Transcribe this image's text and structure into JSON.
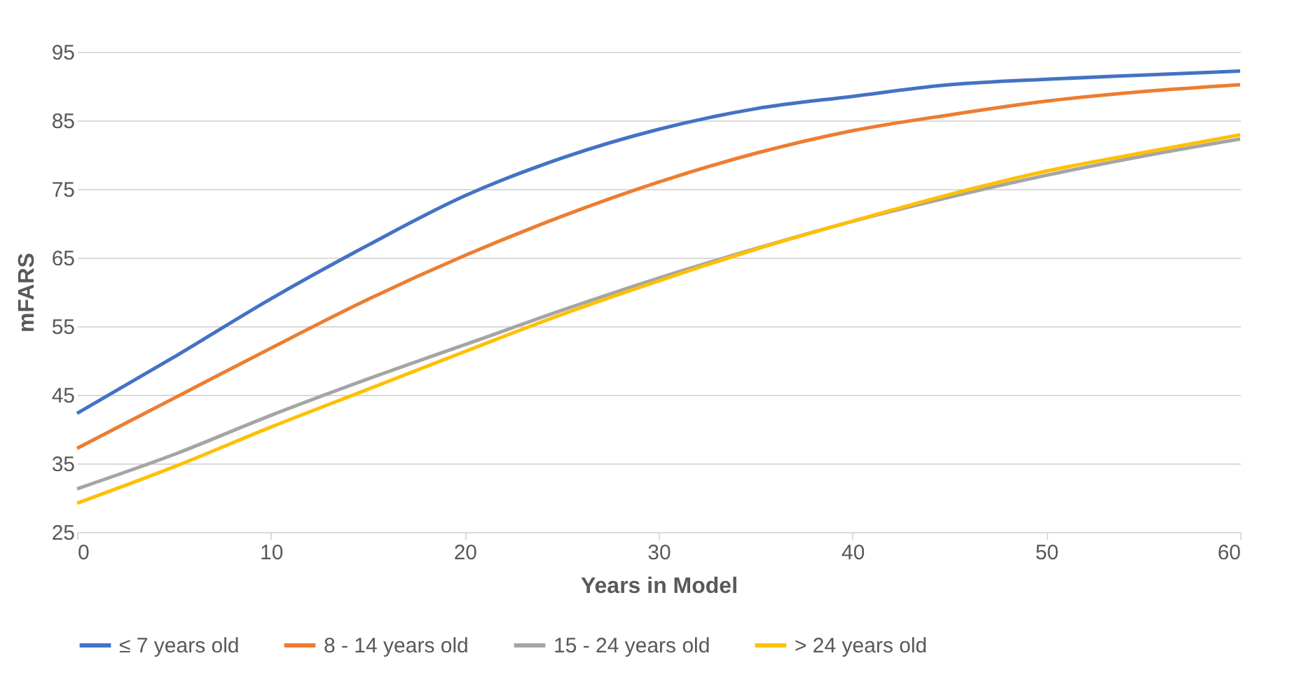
{
  "chart_data": {
    "type": "line",
    "xlabel": "Years in Model",
    "ylabel": "mFARS",
    "x": [
      0,
      5,
      10,
      15,
      20,
      25,
      30,
      35,
      40,
      45,
      50,
      55,
      60
    ],
    "xlim": [
      0,
      60
    ],
    "xticks": [
      0,
      10,
      20,
      30,
      40,
      50,
      60
    ],
    "ylim": [
      25,
      95
    ],
    "yticks": [
      25,
      35,
      45,
      55,
      65,
      75,
      85,
      95
    ],
    "grid": "y",
    "legend": "bottom",
    "series": [
      {
        "name": "≤ 7 years old",
        "color": "#4472c4",
        "values": [
          42.3,
          50.5,
          59,
          66.8,
          74,
          79.5,
          83.7,
          86.7,
          88.5,
          90.2,
          91,
          91.6,
          92.2
        ]
      },
      {
        "name": "8 - 14 years old",
        "color": "#ed7d31",
        "values": [
          37.2,
          44.5,
          51.8,
          58.9,
          65.3,
          71,
          76,
          80.2,
          83.5,
          85.8,
          87.8,
          89.2,
          90.2
        ]
      },
      {
        "name": "15 - 24 years old",
        "color": "#a5a5a5",
        "values": [
          31.3,
          36.3,
          42,
          47.3,
          52.3,
          57.3,
          62,
          66.3,
          70.3,
          73.8,
          77,
          79.8,
          82.3
        ]
      },
      {
        "name": "> 24 years old",
        "color": "#ffc000",
        "values": [
          29.2,
          34.5,
          40.3,
          45.8,
          51.3,
          56.7,
          61.6,
          66.2,
          70.3,
          74.2,
          77.6,
          80.3,
          82.9
        ]
      }
    ]
  }
}
